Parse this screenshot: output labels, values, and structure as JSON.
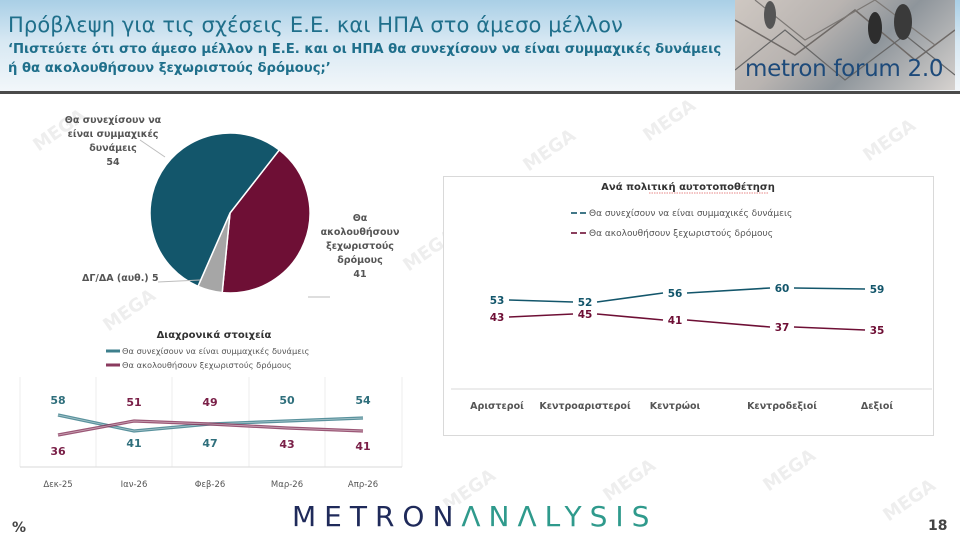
{
  "header": {
    "title": "Πρόβλεψη για τις σχέσεις Ε.Ε. και ΗΠΑ στο άμεσο μέλλον",
    "subtitle": "‘Πιστεύετε ότι στο άμεσο μέλλον η Ε.Ε. και οι ΗΠΑ θα συνεχίσουν να είναι συμμαχικές δυνάμεις ή θα ακολουθήσουν ξεχωριστούς δρόμους;’",
    "forum_badge": "metron forum 2.0"
  },
  "footer": {
    "logo_part1": "METRON",
    "logo_part2": "ΛNΛLYSIS",
    "unit": "%",
    "page_number": "18"
  },
  "watermark": "MEGA",
  "colors": {
    "teal": "#13566b",
    "maroon": "#6e0f35",
    "gray": "#a6a6a6",
    "title": "#1f6f8b",
    "line_teal": "#3d7f8c",
    "line_maroon": "#8a3a5e"
  },
  "chart_data": [
    {
      "type": "pie",
      "title": "",
      "slices": [
        {
          "label": "Θα συνεχίσουν να είναι συμμαχικές δυνάμεις",
          "value": 54,
          "color": "#13566b"
        },
        {
          "label": "Θα ακολουθήσουν ξεχωριστούς δρόμους",
          "value": 41,
          "color": "#6e0f35"
        },
        {
          "label": "ΔΓ/ΔΑ (αυθ.)",
          "value": 5,
          "color": "#a6a6a6"
        }
      ],
      "labels_display": {
        "ally": [
          "Θα συνεχίσουν να",
          "είναι συμμαχικές",
          "δυνάμεις",
          "54"
        ],
        "separate": [
          "Θα",
          "ακολουθήσουν",
          "ξεχωριστούς",
          "δρόμους",
          "41"
        ],
        "dk": "ΔΓ/ΔΑ (αυθ.) 5"
      }
    },
    {
      "type": "line",
      "title": "Διαχρονικά στοιχεία",
      "categories": [
        "Δεκ-25",
        "Ιαν-26",
        "Φεβ-26",
        "Μαρ-26",
        "Απρ-26"
      ],
      "series": [
        {
          "name": "Θα συνεχίσουν να είναι συμμαχικές δυνάμεις",
          "values": [
            58,
            41,
            47,
            50,
            54
          ],
          "color": "#3d7f8c"
        },
        {
          "name": "Θα ακολουθήσουν ξεχωριστούς δρόμους",
          "values": [
            36,
            51,
            49,
            43,
            41
          ],
          "color": "#8a3a5e"
        }
      ],
      "legend_position": "top",
      "grid": "vertical"
    },
    {
      "type": "line",
      "title": "Ανά πολιτική αυτοτοποθέτηση",
      "categories": [
        "Αριστεροί",
        "Κεντροαριστεροί",
        "Κεντρώοι",
        "Κεντροδεξιοί",
        "Δεξιοί"
      ],
      "series": [
        {
          "name": "Θα συνεχίσουν να είναι συμμαχικές δυνάμεις",
          "values": [
            53,
            52,
            56,
            60,
            59
          ],
          "color": "#13566b"
        },
        {
          "name": "Θα ακολουθήσουν ξεχωριστούς δρόμους",
          "values": [
            43,
            45,
            41,
            37,
            35
          ],
          "color": "#6e0f35"
        }
      ],
      "legend_position": "top",
      "grid": "none"
    }
  ]
}
